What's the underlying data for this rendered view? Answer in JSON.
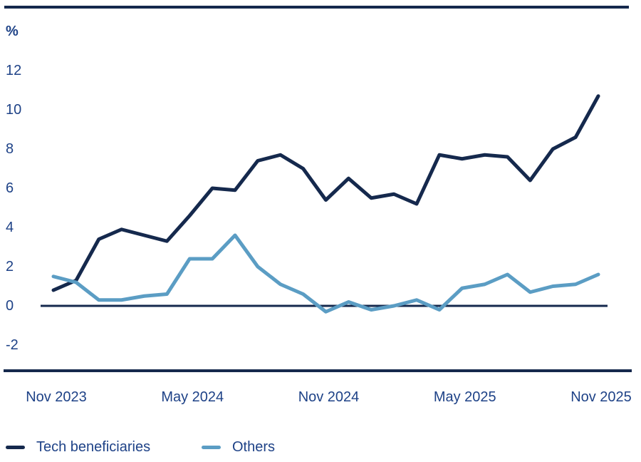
{
  "colors": {
    "dark_navy": "#15294d",
    "light_blue": "#5b9dc4",
    "label_text": "#1e4287",
    "background": "#ffffff"
  },
  "unit_label": "%",
  "y_axis": {
    "ticks": [
      12,
      10,
      8,
      6,
      4,
      2,
      0,
      -2
    ]
  },
  "x_axis": {
    "ticks": [
      {
        "label": "Nov 2023",
        "month_index": 0
      },
      {
        "label": "May 2024",
        "month_index": 6
      },
      {
        "label": "Nov 2024",
        "month_index": 12
      },
      {
        "label": "May 2025",
        "month_index": 18
      },
      {
        "label": "Nov 2025",
        "month_index": 24
      }
    ]
  },
  "legend": [
    {
      "label": "Tech beneficiaries",
      "color": "#15294d"
    },
    {
      "label": "Others",
      "color": "#5b9dc4"
    }
  ],
  "chart_data": {
    "type": "line",
    "title": "",
    "xlabel": "",
    "ylabel": "%",
    "ylim": [
      -2,
      12
    ],
    "grid": false,
    "legend_position": "bottom",
    "x": [
      "Nov 2023",
      "Dec 2023",
      "Jan 2024",
      "Feb 2024",
      "Mar 2024",
      "Apr 2024",
      "May 2024",
      "Jun 2024",
      "Jul 2024",
      "Aug 2024",
      "Sep 2024",
      "Oct 2024",
      "Nov 2024",
      "Dec 2024",
      "Jan 2025",
      "Feb 2025",
      "Mar 2025",
      "Apr 2025",
      "May 2025",
      "Jun 2025",
      "Jul 2025",
      "Aug 2025",
      "Sep 2025",
      "Oct 2025",
      "Nov 2025"
    ],
    "series": [
      {
        "name": "Tech beneficiaries",
        "color": "#15294d",
        "values": [
          0.8,
          1.3,
          3.4,
          3.9,
          3.6,
          3.3,
          4.6,
          6.0,
          5.9,
          7.4,
          7.7,
          7.0,
          5.4,
          6.5,
          5.5,
          5.7,
          5.2,
          7.7,
          7.5,
          7.7,
          7.6,
          6.4,
          8.0,
          8.6,
          10.7
        ]
      },
      {
        "name": "Others",
        "color": "#5b9dc4",
        "values": [
          1.5,
          1.2,
          0.3,
          0.3,
          0.5,
          0.6,
          2.4,
          2.4,
          3.6,
          2.0,
          1.1,
          0.6,
          -0.3,
          0.2,
          -0.2,
          0.0,
          0.3,
          -0.2,
          0.9,
          1.1,
          1.6,
          0.7,
          1.0,
          1.1,
          1.6
        ]
      }
    ]
  }
}
